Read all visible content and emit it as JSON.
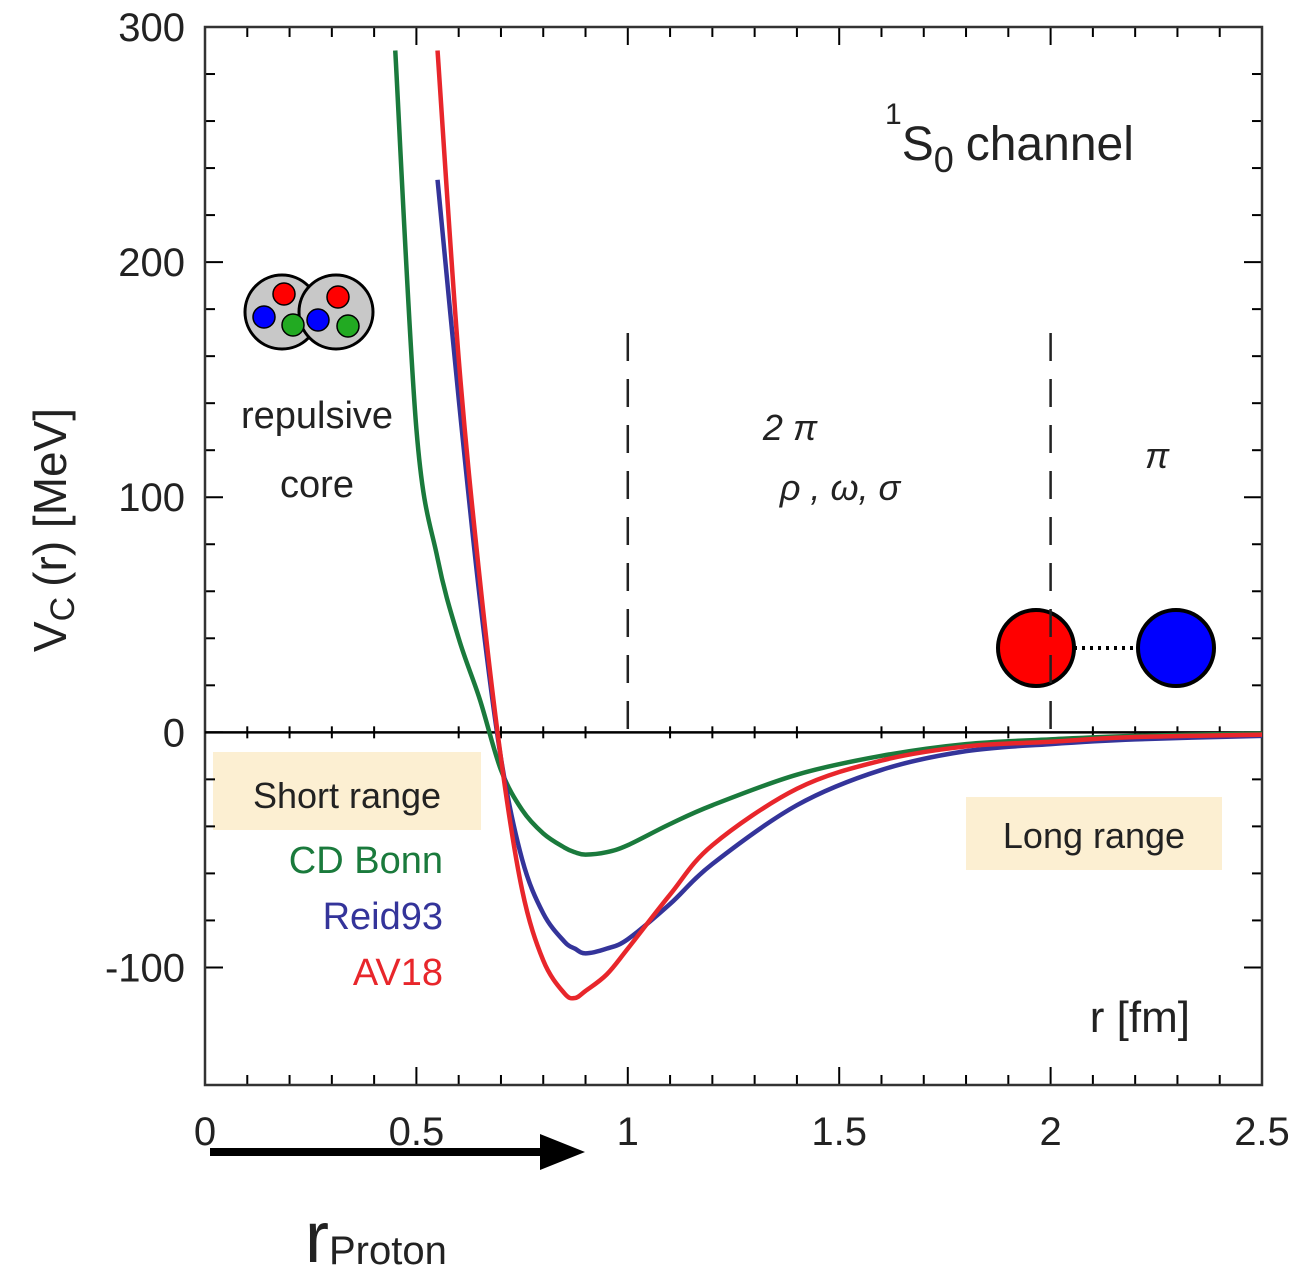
{
  "chart_data": {
    "type": "line",
    "channel_label": {
      "sup": "1",
      "base": "S",
      "sub": "0",
      "tail": "channel"
    },
    "ylabel": {
      "base": "V",
      "sub": "C",
      "tail": "(r) [MeV]"
    },
    "xlabel": "r [fm]",
    "x": [
      0.45,
      0.5,
      0.55,
      0.6,
      0.65,
      0.7,
      0.75,
      0.8,
      0.85,
      0.875,
      0.9,
      0.95,
      1.0,
      1.1,
      1.2,
      1.4,
      1.6,
      1.8,
      2.0,
      2.2,
      2.5
    ],
    "series": [
      {
        "name": "CD Bonn",
        "color": "#1a7a3c",
        "values": [
          290,
          129,
          74,
          40,
          14,
          -16,
          -33,
          -43,
          -49,
          -51,
          -52,
          -51,
          -48,
          -39,
          -31,
          -18,
          -10,
          -5,
          -3,
          -1.5,
          -0.5
        ]
      },
      {
        "name": "Reid93",
        "color": "#34349a",
        "values": [
          null,
          null,
          235,
          142,
          57,
          -11,
          -54,
          -77,
          -89,
          -92,
          -94,
          -92,
          -88,
          -73,
          -56,
          -31,
          -16,
          -8,
          -5,
          -3,
          -1.5
        ]
      },
      {
        "name": "AV18",
        "color": "#e8262b",
        "values": [
          null,
          null,
          290,
          159,
          65,
          -11,
          -67,
          -97,
          -111,
          -113,
          -110,
          -103,
          -92,
          -69,
          -48,
          -24,
          -12,
          -6,
          -4,
          -2,
          -1
        ]
      }
    ],
    "xlim": [
      0,
      2.5
    ],
    "ylim": [
      -150,
      300
    ],
    "xticks": [
      0,
      0.5,
      1,
      1.5,
      2,
      2.5
    ],
    "yticks": [
      -100,
      0,
      100,
      200,
      300
    ],
    "boundaries": [
      1,
      2
    ],
    "regions": [
      [
        "repulsive",
        "core"
      ],
      [
        "2 π",
        "ρ , ω, σ"
      ],
      [
        "π"
      ]
    ],
    "range_labels": [
      "Short range",
      "Long range"
    ],
    "arrow_label": {
      "base": "r",
      "sub": "Proton"
    }
  }
}
